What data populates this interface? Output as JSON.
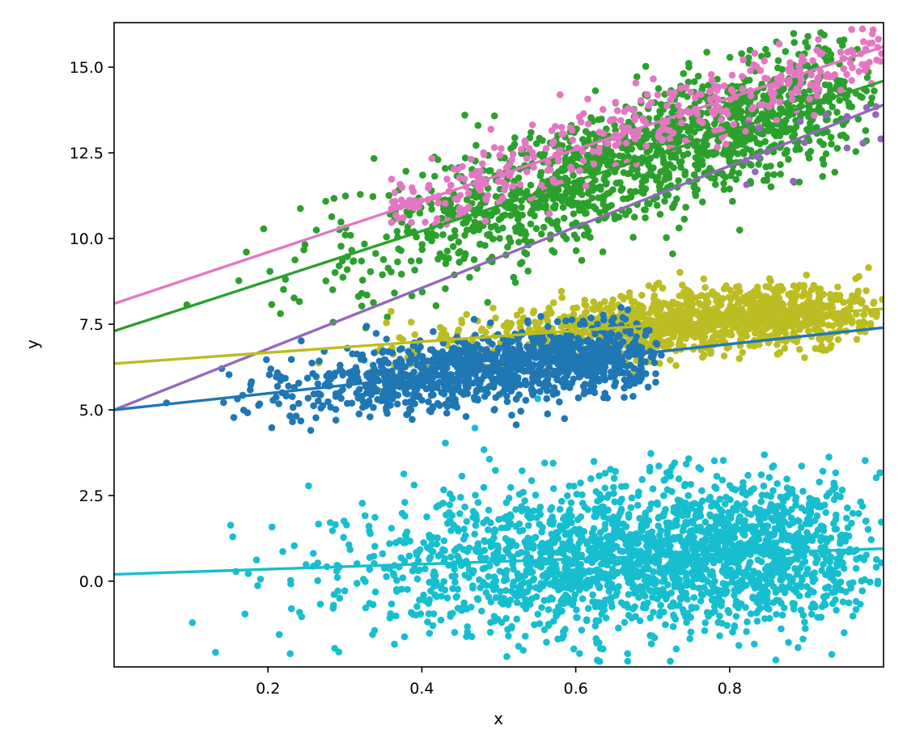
{
  "chart_data": {
    "type": "scatter",
    "title": "",
    "xlabel": "x",
    "ylabel": "y",
    "xlim": [
      0.0,
      1.0
    ],
    "ylim": [
      -2.5,
      16.3
    ],
    "xticks": [
      0.2,
      0.4,
      0.6,
      0.8
    ],
    "xtick_labels": [
      "0.2",
      "0.4",
      "0.6",
      "0.8"
    ],
    "yticks": [
      0.0,
      2.5,
      5.0,
      7.5,
      10.0,
      12.5,
      15.0
    ],
    "ytick_labels": [
      "0.0",
      "2.5",
      "5.0",
      "7.5",
      "10.0",
      "12.5",
      "15.0"
    ],
    "grid": false,
    "legend": "none",
    "series": [
      {
        "color": "#2ca02c",
        "points_drawn": 1500,
        "x_range": [
          0.0,
          1.0
        ],
        "fit_line": [
          [
            0.0,
            7.3
          ],
          [
            1.0,
            14.6
          ]
        ],
        "spread": 0.9
      },
      {
        "color": "#e377c2",
        "points_drawn": 400,
        "x_range": [
          0.36,
          1.0
        ],
        "fit_line": [
          [
            0.0,
            8.1
          ],
          [
            1.0,
            15.6
          ]
        ],
        "spread": 0.55
      },
      {
        "color": "#9467bd",
        "points_drawn": 18,
        "x_range": [
          0.82,
          1.0
        ],
        "fit_line": [
          [
            0.0,
            5.0
          ],
          [
            1.0,
            13.9
          ]
        ],
        "spread": 0.6
      },
      {
        "color": "#bcbd22",
        "points_drawn": 1300,
        "x_range": [
          0.2,
          1.0
        ],
        "fit_line": [
          [
            0.0,
            6.35
          ],
          [
            1.0,
            7.95
          ]
        ],
        "spread": 0.45
      },
      {
        "color": "#1f77b4",
        "points_drawn": 1200,
        "x_range": [
          0.0,
          0.72
        ],
        "fit_line": [
          [
            0.0,
            5.0
          ],
          [
            1.0,
            7.4
          ]
        ],
        "spread": 0.5
      },
      {
        "color": "#17becf",
        "points_drawn": 2200,
        "x_range": [
          0.0,
          1.0
        ],
        "fit_line": [
          [
            0.0,
            0.2
          ],
          [
            1.0,
            0.95
          ]
        ],
        "spread": 1.1
      }
    ]
  }
}
